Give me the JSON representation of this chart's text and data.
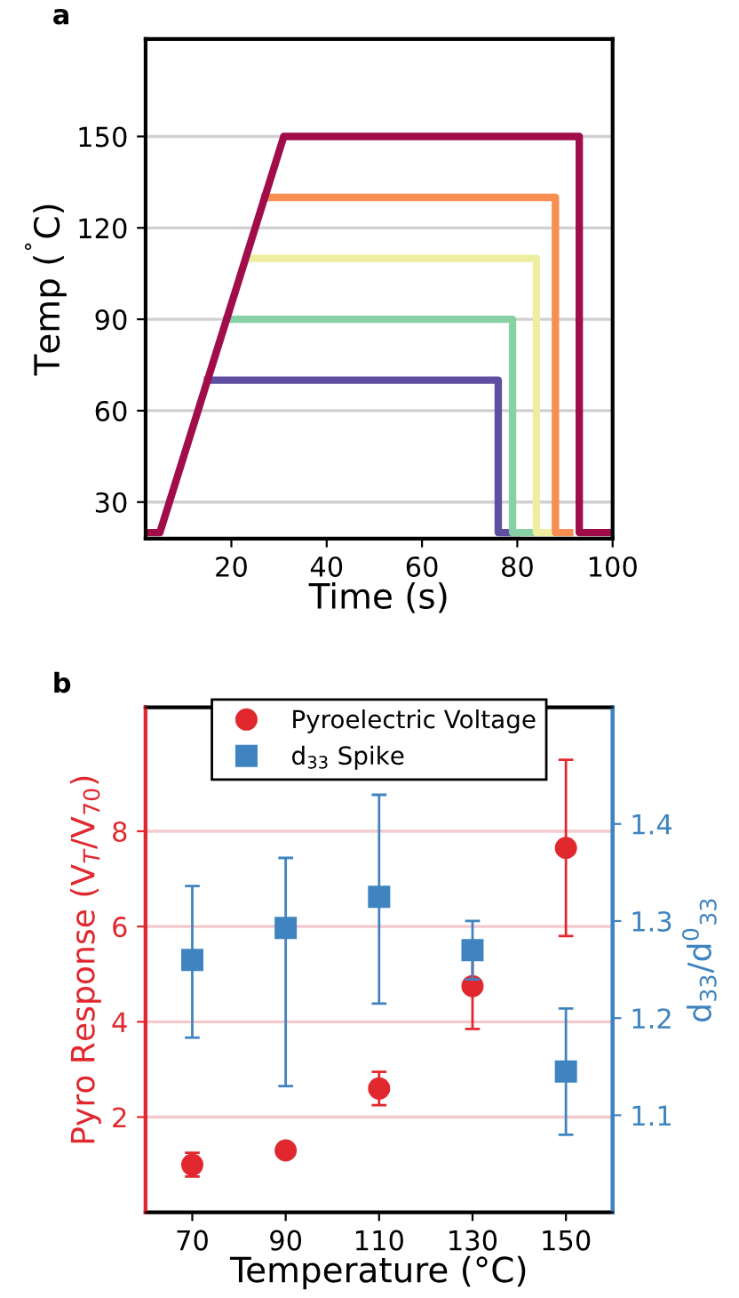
{
  "chart_data": [
    {
      "type": "line",
      "title": "a",
      "xlabel": "Time (s)",
      "ylabel": "Temp ($^{˚}$C)",
      "xlim": [
        2,
        100
      ],
      "ylim": [
        18,
        182
      ],
      "xticks": [
        20,
        40,
        60,
        80,
        100
      ],
      "yticks": [
        30,
        60,
        90,
        120,
        150
      ],
      "grid": "y",
      "series": [
        {
          "color": "#5e4fa2",
          "x": [
            15,
            76,
            76,
            80
          ],
          "values": [
            70,
            70,
            20,
            20
          ]
        },
        {
          "color": "#88d1a4",
          "x": [
            19,
            79,
            79,
            83
          ],
          "values": [
            90,
            90,
            20,
            20
          ]
        },
        {
          "color": "#eeeea0",
          "x": [
            23,
            84,
            84,
            87
          ],
          "values": [
            110,
            110,
            20,
            20
          ]
        },
        {
          "color": "#f98e52",
          "x": [
            27,
            88,
            88,
            91
          ],
          "values": [
            130,
            130,
            20,
            20
          ]
        },
        {
          "color": "#a00d4a",
          "x": [
            2,
            5,
            31,
            93,
            93,
            100
          ],
          "values": [
            20,
            20,
            150,
            150,
            20,
            20
          ]
        }
      ]
    },
    {
      "type": "scatter",
      "title": "b",
      "xlabel": "Temperature (°C)",
      "ylabel": "Pyro Response (V$_{T}$/V$_{70}$)",
      "y2label": "d$_{33}$/d$^{0}$$_{33}$",
      "xlim": [
        60,
        160
      ],
      "ylim": [
        0,
        10.6
      ],
      "y2lim": [
        1.0,
        1.52
      ],
      "xticks": [
        70,
        90,
        110,
        130,
        150
      ],
      "yticks": [
        2,
        4,
        6,
        8
      ],
      "y2ticks": [
        1.1,
        1.2,
        1.3,
        1.4
      ],
      "grid": "y",
      "legend": "top",
      "series": [
        {
          "name": "Pyroelectric Voltage",
          "color": "#e0282e",
          "marker": "circle",
          "x": [
            70,
            90,
            110,
            130,
            150
          ],
          "values": [
            1.0,
            1.3,
            2.6,
            4.75,
            7.65
          ],
          "errors": [
            [
              0.75,
              1.25
            ],
            null,
            [
              2.25,
              2.95
            ],
            [
              3.85,
              5.65
            ],
            [
              5.8,
              9.5
            ]
          ]
        },
        {
          "name": "d$_{33}$ Spike",
          "color": "#3f84c0",
          "marker": "square",
          "axis": "y2",
          "x": [
            70,
            90,
            110,
            130,
            150
          ],
          "values": [
            1.26,
            1.293,
            1.325,
            1.27,
            1.145
          ],
          "errors": [
            [
              1.18,
              1.336
            ],
            [
              1.13,
              1.365
            ],
            [
              1.215,
              1.43
            ],
            [
              1.24,
              1.3
            ],
            [
              1.08,
              1.21
            ]
          ]
        }
      ]
    }
  ]
}
